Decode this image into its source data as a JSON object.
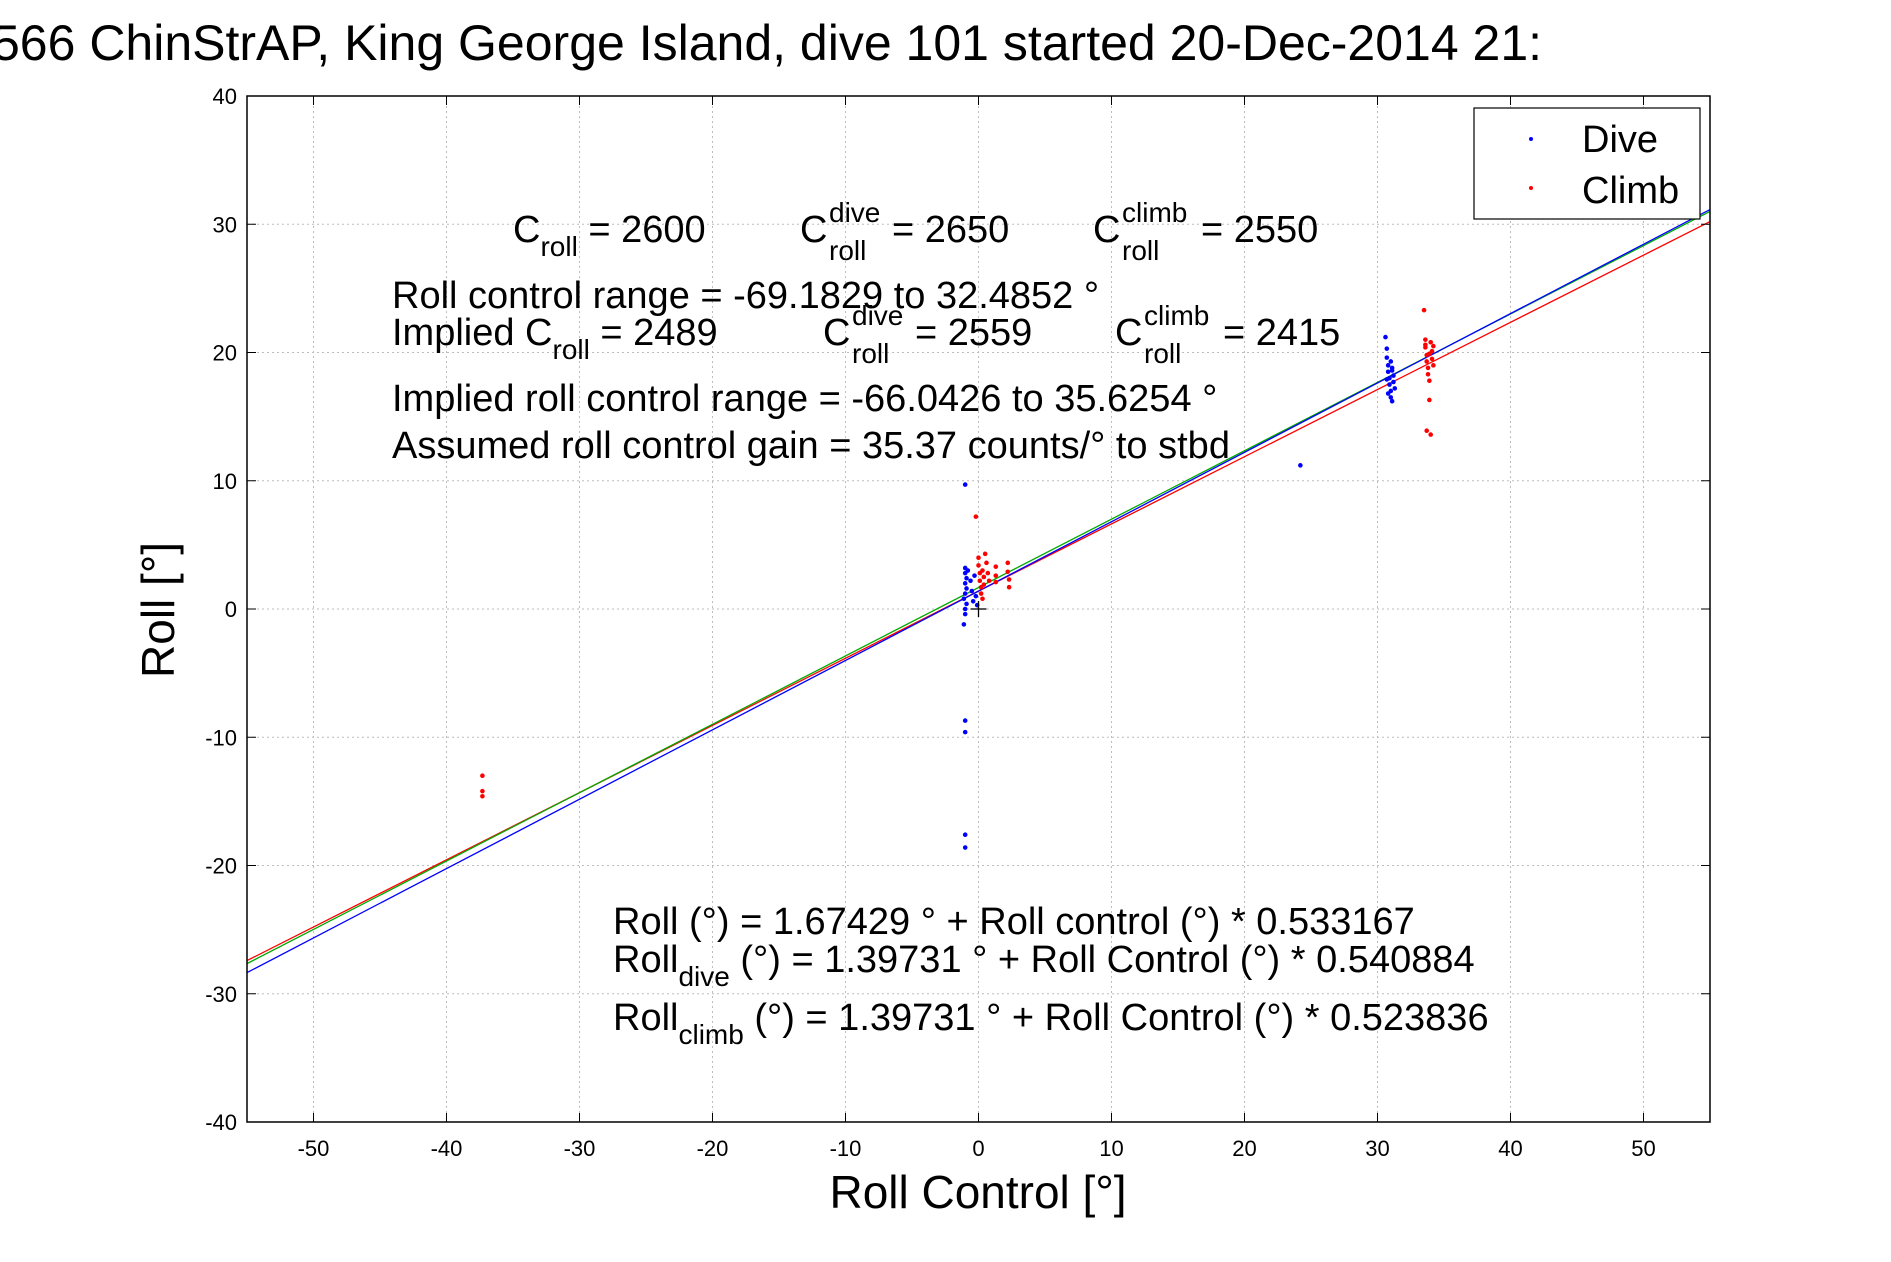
{
  "chart_data": {
    "type": "scatter",
    "title": "566 ChinStrAP, King George Island, dive 101 started 20-Dec-2014 21:",
    "xlabel": "Roll Control [°]",
    "ylabel": "Roll [°]",
    "xlim": [
      -55,
      55
    ],
    "ylim": [
      -40,
      40
    ],
    "xticks": [
      -50,
      -40,
      -30,
      -20,
      -10,
      0,
      10,
      20,
      30,
      40,
      50
    ],
    "yticks": [
      -40,
      -30,
      -20,
      -10,
      0,
      10,
      20,
      30,
      40
    ],
    "grid": true,
    "legend_position": "top-right",
    "colors": {
      "dive": "#0000ff",
      "climb": "#ff0000",
      "fit_all": "#00aa00",
      "fit_dive": "#0000ff",
      "fit_climb": "#ff0000"
    },
    "series": [
      {
        "name": "Dive",
        "marker": "dot",
        "color": "#0000ff",
        "points": [
          [
            -1.0,
            9.7
          ],
          [
            -1.0,
            3.2
          ],
          [
            -1.0,
            2.8
          ],
          [
            -0.9,
            2.4
          ],
          [
            -1.0,
            2.0
          ],
          [
            -0.9,
            1.6
          ],
          [
            -1.0,
            1.2
          ],
          [
            -1.1,
            0.8
          ],
          [
            -0.9,
            0.4
          ],
          [
            -1.0,
            0.0
          ],
          [
            -1.0,
            -0.4
          ],
          [
            -1.1,
            -1.2
          ],
          [
            -0.8,
            3.0
          ],
          [
            -0.6,
            2.2
          ],
          [
            -0.5,
            1.4
          ],
          [
            -0.4,
            0.6
          ],
          [
            -0.3,
            2.6
          ],
          [
            -0.2,
            1.0
          ],
          [
            -0.1,
            0.3
          ],
          [
            -1.0,
            -8.7
          ],
          [
            -1.0,
            -9.6
          ],
          [
            -1.0,
            -17.6
          ],
          [
            -1.0,
            -18.6
          ],
          [
            24.2,
            11.2
          ],
          [
            30.6,
            21.2
          ],
          [
            30.7,
            20.3
          ],
          [
            30.7,
            19.6
          ],
          [
            30.8,
            19.0
          ],
          [
            30.8,
            18.5
          ],
          [
            30.9,
            18.0
          ],
          [
            30.9,
            17.5
          ],
          [
            31.0,
            17.0
          ],
          [
            31.0,
            16.5
          ],
          [
            31.1,
            16.2
          ],
          [
            31.1,
            18.8
          ],
          [
            31.2,
            18.2
          ],
          [
            31.2,
            17.7
          ],
          [
            31.3,
            17.2
          ],
          [
            30.7,
            17.9
          ],
          [
            30.8,
            16.8
          ],
          [
            31.0,
            19.3
          ],
          [
            31.1,
            18.6
          ]
        ]
      },
      {
        "name": "Climb",
        "marker": "dot",
        "color": "#ff0000",
        "points": [
          [
            -37.3,
            -13.0
          ],
          [
            -37.3,
            -14.2
          ],
          [
            -37.3,
            -14.6
          ],
          [
            -0.2,
            7.2
          ],
          [
            0.0,
            4.0
          ],
          [
            0.0,
            3.4
          ],
          [
            0.1,
            2.8
          ],
          [
            0.1,
            2.2
          ],
          [
            0.2,
            1.7
          ],
          [
            0.2,
            1.2
          ],
          [
            0.3,
            0.8
          ],
          [
            0.3,
            3.0
          ],
          [
            0.4,
            2.5
          ],
          [
            0.4,
            1.9
          ],
          [
            0.5,
            4.3
          ],
          [
            0.6,
            3.6
          ],
          [
            0.7,
            2.8
          ],
          [
            0.8,
            2.2
          ],
          [
            1.3,
            3.3
          ],
          [
            1.3,
            2.6
          ],
          [
            1.3,
            2.1
          ],
          [
            2.2,
            3.6
          ],
          [
            2.2,
            2.9
          ],
          [
            2.3,
            2.3
          ],
          [
            2.3,
            1.7
          ],
          [
            33.5,
            23.3
          ],
          [
            33.6,
            21.0
          ],
          [
            33.6,
            20.4
          ],
          [
            33.7,
            19.8
          ],
          [
            33.7,
            19.3
          ],
          [
            33.8,
            18.8
          ],
          [
            33.8,
            18.3
          ],
          [
            33.9,
            17.8
          ],
          [
            33.9,
            16.3
          ],
          [
            33.7,
            13.9
          ],
          [
            34.0,
            13.6
          ],
          [
            34.0,
            20.8
          ],
          [
            34.1,
            20.1
          ],
          [
            34.1,
            19.5
          ],
          [
            34.2,
            19.0
          ],
          [
            33.6,
            20.6
          ],
          [
            33.9,
            19.9
          ],
          [
            34.2,
            20.5
          ]
        ]
      }
    ],
    "fit_lines": [
      {
        "label": "all",
        "intercept": 1.67429,
        "slope": 0.533167,
        "color": "#00aa00"
      },
      {
        "label": "dive",
        "intercept": 1.39731,
        "slope": 0.540884,
        "color": "#0000ff"
      },
      {
        "label": "climb",
        "intercept": 1.39731,
        "slope": 0.523836,
        "color": "#ff0000"
      }
    ],
    "origin_marker": [
      0,
      0
    ]
  },
  "annotations": {
    "c_roll_label": "C",
    "c_roll_sub": "roll",
    "c_roll_value": " = 2600",
    "c_dive_label": "C",
    "c_dive_sup": "dive",
    "c_dive_sub": "roll",
    "c_dive_value": " = 2650",
    "c_climb_label": "C",
    "c_climb_sup": "climb",
    "c_climb_sub": "roll",
    "c_climb_value": " = 2550",
    "roll_control_range": "Roll control range = -69.1829 to 32.4852 °",
    "implied_prefix": "Implied C",
    "implied_sub": "roll",
    "implied_value": " = 2489",
    "implied_dive_label": "C",
    "implied_dive_sup": "dive",
    "implied_dive_sub": "roll",
    "implied_dive_value": " = 2559",
    "implied_climb_label": "C",
    "implied_climb_sup": "climb",
    "implied_climb_sub": "roll",
    "implied_climb_value": " = 2415",
    "implied_range": "Implied roll control range = -66.0426 to 35.6254 °",
    "assumed_gain": "Assumed roll control gain = 35.37 counts/° to stbd",
    "eq_all": "Roll (°) = 1.67429 ° + Roll control (°) * 0.533167",
    "eq_dive_prefix": "Roll",
    "eq_dive_sub": "dive",
    "eq_dive_rest": " (°) = 1.39731 ° + Roll Control (°) * 0.540884",
    "eq_climb_prefix": "Roll",
    "eq_climb_sub": "climb",
    "eq_climb_rest": " (°) = 1.39731 ° + Roll Control (°) * 0.523836"
  }
}
